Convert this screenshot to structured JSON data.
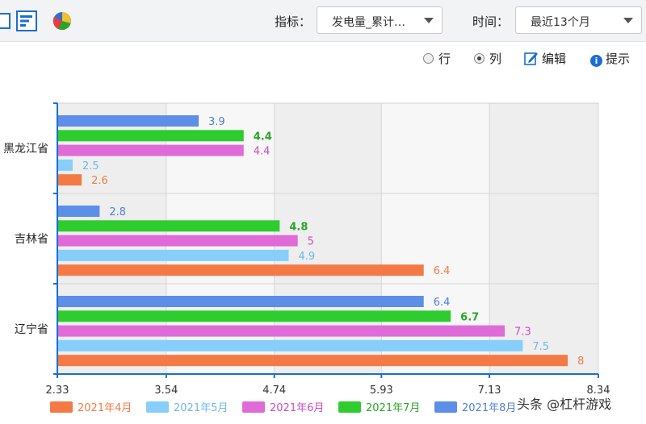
{
  "toolbar": {
    "icons": [
      "table-icon",
      "bar-chart-icon",
      "pie-chart-icon"
    ],
    "indicator_label": "指标：",
    "indicator_value": "发电量_累计…",
    "time_label": "时间：",
    "time_value": "最近13个月"
  },
  "options": {
    "row_label": "行",
    "column_label": "列",
    "edit_label": "编辑",
    "hint_label": "提示",
    "selected": "列"
  },
  "watermark": "头条 @杠杆游戏",
  "chart_data": {
    "type": "bar",
    "orientation": "horizontal",
    "categories": [
      "黑龙江省",
      "吉林省",
      "辽宁省"
    ],
    "series": [
      {
        "name": "2021年4月",
        "color": "#f47a45",
        "label_color": "#f47a45",
        "values": [
          2.6,
          6.4,
          8
        ]
      },
      {
        "name": "2021年5月",
        "color": "#87cefa",
        "label_color": "#6cb8e8",
        "values": [
          2.5,
          4.9,
          7.5
        ]
      },
      {
        "name": "2021年6月",
        "color": "#df6bd8",
        "label_color": "#c94cc3",
        "values": [
          4.4,
          5,
          7.3
        ]
      },
      {
        "name": "2021年7月",
        "color": "#2ecc2e",
        "label_color": "#2aa52a",
        "values": [
          4.4,
          4.8,
          6.7
        ]
      },
      {
        "name": "2021年8月",
        "color": "#5d8ee8",
        "label_color": "#4f7fd6",
        "values": [
          3.9,
          2.8,
          6.4
        ]
      }
    ],
    "xlim": [
      2.33,
      8.34
    ],
    "xticks": [
      "2.33",
      "3.54",
      "4.74",
      "5.93",
      "7.13",
      "8.34"
    ],
    "grid": true,
    "legend": "bottom"
  }
}
